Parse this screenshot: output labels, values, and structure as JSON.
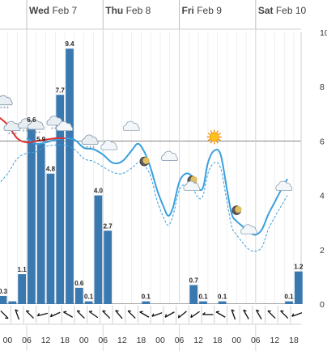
{
  "chart_data": {
    "type": "bar",
    "days": [
      {
        "weekday": "Wed",
        "date": "Feb 7",
        "start_hour": 6
      },
      {
        "weekday": "Thu",
        "date": "Feb 8",
        "start_hour": 30
      },
      {
        "weekday": "Fri",
        "date": "Feb 9",
        "start_hour": 54
      },
      {
        "weekday": "Sat",
        "date": "Feb 10",
        "start_hour": 78
      }
    ],
    "x_range_hours": [
      -2.4,
      92.3
    ],
    "hour_ticks": [
      0,
      6,
      12,
      18,
      24,
      30,
      36,
      42,
      48,
      54,
      60,
      66,
      72,
      78,
      84,
      90
    ],
    "hour_tick_labels": [
      "00",
      "06",
      "12",
      "18",
      "00",
      "06",
      "12",
      "18",
      "00",
      "06",
      "12",
      "18",
      "00",
      "06",
      "12",
      "18"
    ],
    "ylim": [
      0,
      10
    ],
    "y_ticks": [
      0,
      2,
      4,
      6,
      8,
      10
    ],
    "y_tick_labels": [
      "0",
      "2",
      "4",
      "6",
      "8",
      "10"
    ],
    "reference_line": 6,
    "precip_bars": [
      {
        "hour": -3,
        "value": 0.3,
        "label": "0.3"
      },
      {
        "hour": 0,
        "value": 0.1,
        "label": ""
      },
      {
        "hour": 3,
        "value": 1.1,
        "label": "1.1"
      },
      {
        "hour": 6,
        "value": 6.6,
        "label": "6.6"
      },
      {
        "hour": 9,
        "value": 5.9,
        "label": "5.9"
      },
      {
        "hour": 12,
        "value": 4.8,
        "label": "4.8"
      },
      {
        "hour": 15,
        "value": 7.7,
        "label": "7.7"
      },
      {
        "hour": 18,
        "value": 9.4,
        "label": "9.4"
      },
      {
        "hour": 21,
        "value": 0.6,
        "label": "0.6"
      },
      {
        "hour": 24,
        "value": 0.1,
        "label": "0.1"
      },
      {
        "hour": 27,
        "value": 4.0,
        "label": "4.0"
      },
      {
        "hour": 30,
        "value": 2.7,
        "label": "2.7"
      },
      {
        "hour": 42,
        "value": 0.1,
        "label": "0.1"
      },
      {
        "hour": 57,
        "value": 0.7,
        "label": "0.7"
      },
      {
        "hour": 60,
        "value": 0.1,
        "label": "0.1"
      },
      {
        "hour": 66,
        "value": 0.1,
        "label": "0.1"
      },
      {
        "hour": 87,
        "value": 0.1,
        "label": "0.1"
      },
      {
        "hour": 90,
        "value": 1.2,
        "label": "1.2"
      }
    ],
    "line_series": [
      {
        "color": "#e03030",
        "style": "solid",
        "points": [
          [
            -3,
            6.9
          ],
          [
            0,
            6.6
          ],
          [
            3,
            6.1
          ],
          [
            6,
            5.95
          ],
          [
            9,
            6.0
          ],
          [
            12,
            6.05
          ],
          [
            15,
            6.1
          ],
          [
            18,
            6.1
          ]
        ]
      },
      {
        "color": "#3aa0dd",
        "style": "solid",
        "points": [
          [
            6,
            6.1
          ],
          [
            9,
            5.9
          ],
          [
            12,
            5.95
          ],
          [
            15,
            6.05
          ],
          [
            18,
            6.1
          ],
          [
            21,
            6.05
          ],
          [
            24,
            5.75
          ],
          [
            27,
            5.7
          ],
          [
            30,
            5.5
          ],
          [
            33,
            5.2
          ],
          [
            36,
            5.25
          ],
          [
            39,
            5.65
          ],
          [
            41,
            5.9
          ],
          [
            43,
            5.6
          ],
          [
            45,
            5.0
          ],
          [
            47,
            4.2
          ],
          [
            49,
            3.6
          ],
          [
            50.5,
            3.25
          ],
          [
            52,
            3.55
          ],
          [
            54,
            4.5
          ],
          [
            56,
            4.8
          ],
          [
            58,
            4.7
          ],
          [
            60,
            4.25
          ],
          [
            61.5,
            4.3
          ],
          [
            63,
            5.2
          ],
          [
            65,
            5.65
          ],
          [
            67,
            5.5
          ],
          [
            69,
            4.2
          ],
          [
            70.5,
            3.3
          ],
          [
            72,
            3.05
          ],
          [
            74,
            2.85
          ],
          [
            76,
            2.65
          ],
          [
            78,
            2.55
          ],
          [
            80,
            2.75
          ],
          [
            82,
            3.3
          ],
          [
            84,
            3.75
          ],
          [
            86,
            4.2
          ],
          [
            88,
            4.6
          ]
        ]
      },
      {
        "color": "#3aa0dd",
        "style": "dashed",
        "points": [
          [
            -3,
            4.4
          ],
          [
            0,
            4.8
          ],
          [
            3,
            5.35
          ],
          [
            6,
            5.55
          ],
          [
            9,
            5.6
          ],
          [
            12,
            5.8
          ],
          [
            15,
            5.85
          ],
          [
            18,
            5.85
          ],
          [
            21,
            5.7
          ],
          [
            24,
            5.35
          ],
          [
            27,
            5.25
          ],
          [
            30,
            5.05
          ],
          [
            33,
            4.85
          ],
          [
            36,
            4.8
          ],
          [
            39,
            5.0
          ],
          [
            41,
            5.2
          ],
          [
            43,
            5.1
          ],
          [
            45,
            4.7
          ],
          [
            47,
            3.8
          ],
          [
            49,
            3.2
          ],
          [
            50.5,
            2.9
          ],
          [
            52,
            3.25
          ],
          [
            54,
            4.2
          ],
          [
            56,
            4.4
          ],
          [
            58,
            4.3
          ],
          [
            60,
            3.9
          ],
          [
            61.5,
            4.0
          ],
          [
            63,
            4.8
          ],
          [
            65,
            5.2
          ],
          [
            67,
            5.0
          ],
          [
            69,
            3.75
          ],
          [
            70.5,
            2.85
          ],
          [
            72,
            2.55
          ],
          [
            74,
            2.25
          ],
          [
            76,
            2.0
          ],
          [
            78,
            1.95
          ],
          [
            80,
            2.1
          ],
          [
            82,
            2.75
          ],
          [
            84,
            3.2
          ],
          [
            86,
            3.6
          ],
          [
            88,
            4.0
          ]
        ]
      }
    ],
    "weather_icons": [
      {
        "hour": -1,
        "value": 7.45,
        "kind": "snow-cloud-icon"
      },
      {
        "hour": 1.5,
        "value": 6.5,
        "kind": "snow-cloud-icon"
      },
      {
        "hour": 6,
        "value": 6.6,
        "kind": "snow-cloud-icon"
      },
      {
        "hour": 9,
        "value": 6.55,
        "kind": "snow-cloud-icon"
      },
      {
        "hour": 15,
        "value": 6.7,
        "kind": "snow-cloud-icon"
      },
      {
        "hour": 18,
        "value": 6.5,
        "kind": "cloud-icon"
      },
      {
        "hour": 26,
        "value": 6.0,
        "kind": "snow-cloud-icon"
      },
      {
        "hour": 32,
        "value": 5.8,
        "kind": "cloud-icon"
      },
      {
        "hour": 39,
        "value": 6.5,
        "kind": "cloud-icon"
      },
      {
        "hour": 43,
        "value": 5.25,
        "kind": "moon-icon"
      },
      {
        "hour": 51,
        "value": 5.4,
        "kind": "cloud-icon"
      },
      {
        "hour": 58,
        "value": 4.55,
        "kind": "moon-icon"
      },
      {
        "hour": 58,
        "value": 4.3,
        "kind": "cloud-icon"
      },
      {
        "hour": 65,
        "value": 6.15,
        "kind": "sun-icon"
      },
      {
        "hour": 72,
        "value": 3.45,
        "kind": "moon-icon"
      },
      {
        "hour": 76,
        "value": 2.7,
        "kind": "cloud-icon"
      },
      {
        "hour": 87,
        "value": 4.3,
        "kind": "cloud-icon"
      }
    ],
    "wind_directions_deg": [
      135,
      340,
      315,
      255,
      245,
      300,
      315,
      305,
      315,
      320,
      315,
      300,
      250,
      240,
      230,
      235,
      270,
      300,
      340,
      330,
      330,
      315,
      315,
      250
    ],
    "colors": {
      "bars": "#3a78b0",
      "primary_line": "#3aa0dd",
      "secondary_line": "#e03030",
      "reference_line": "#888888",
      "grid": "#e6e6e6"
    }
  }
}
